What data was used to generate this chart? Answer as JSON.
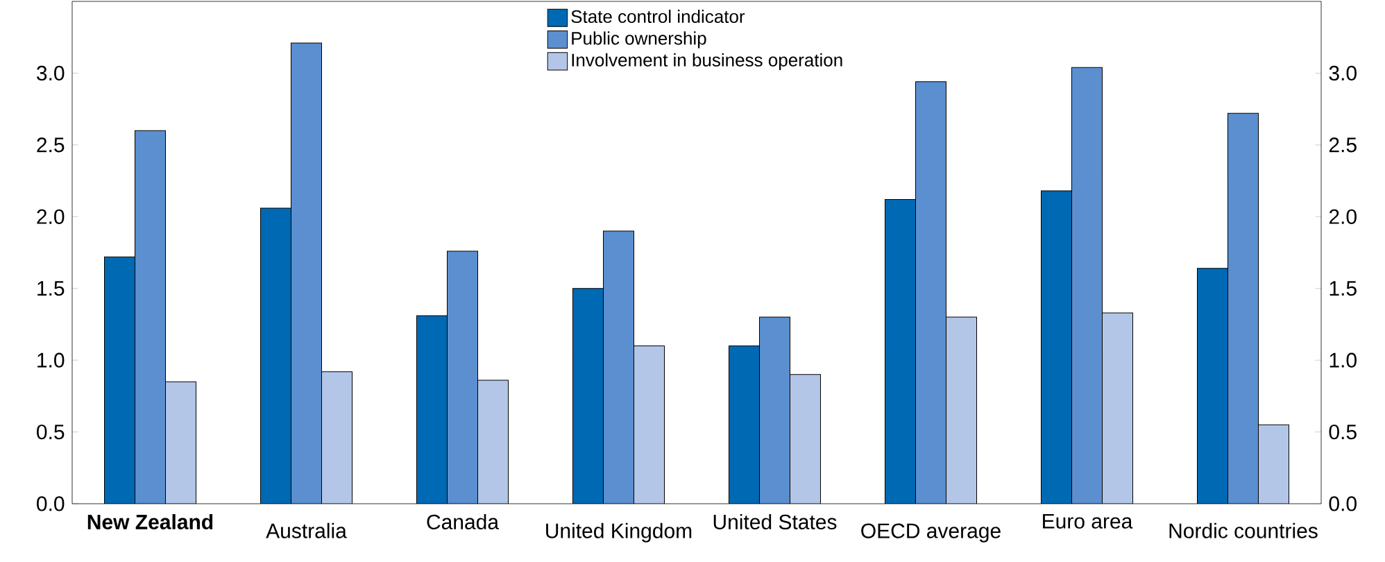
{
  "chart_data": {
    "type": "bar",
    "categories": [
      "**New Zealand**",
      "Australia",
      "Canada",
      "United Kingdom",
      "United States",
      "OECD average",
      "Euro area",
      "Nordic countries"
    ],
    "series": [
      {
        "name": "State control indicator",
        "color": "#0069b4",
        "values": [
          1.72,
          2.06,
          1.31,
          1.5,
          1.1,
          2.12,
          2.18,
          1.64
        ]
      },
      {
        "name": "Public ownership",
        "color": "#5b8fcf",
        "values": [
          2.6,
          3.21,
          1.76,
          1.9,
          1.3,
          2.94,
          3.04,
          2.72
        ]
      },
      {
        "name": "Involvement in business operation",
        "color": "#b3c6e8",
        "values": [
          0.85,
          0.92,
          0.86,
          1.1,
          0.9,
          1.3,
          1.33,
          0.55
        ]
      }
    ],
    "ylim": [
      0,
      3.5
    ],
    "yticks": [
      {
        "value": 0,
        "label": "0.0"
      },
      0.5,
      {
        "value": 1,
        "label": "1.0"
      },
      1.5,
      {
        "value": 2,
        "label": "2.0"
      },
      2.5,
      {
        "value": 3,
        "label": "3.0"
      }
    ],
    "y2lim": [
      0,
      3.5
    ],
    "y2ticks": [
      {
        "value": 0,
        "label": "0.0"
      },
      0.5,
      {
        "value": 1,
        "label": "1.0"
      },
      1.5,
      {
        "value": 2,
        "label": "2.0"
      },
      2.5,
      {
        "value": 3,
        "label": "3.0"
      }
    ],
    "legend": "top",
    "grid": false
  }
}
